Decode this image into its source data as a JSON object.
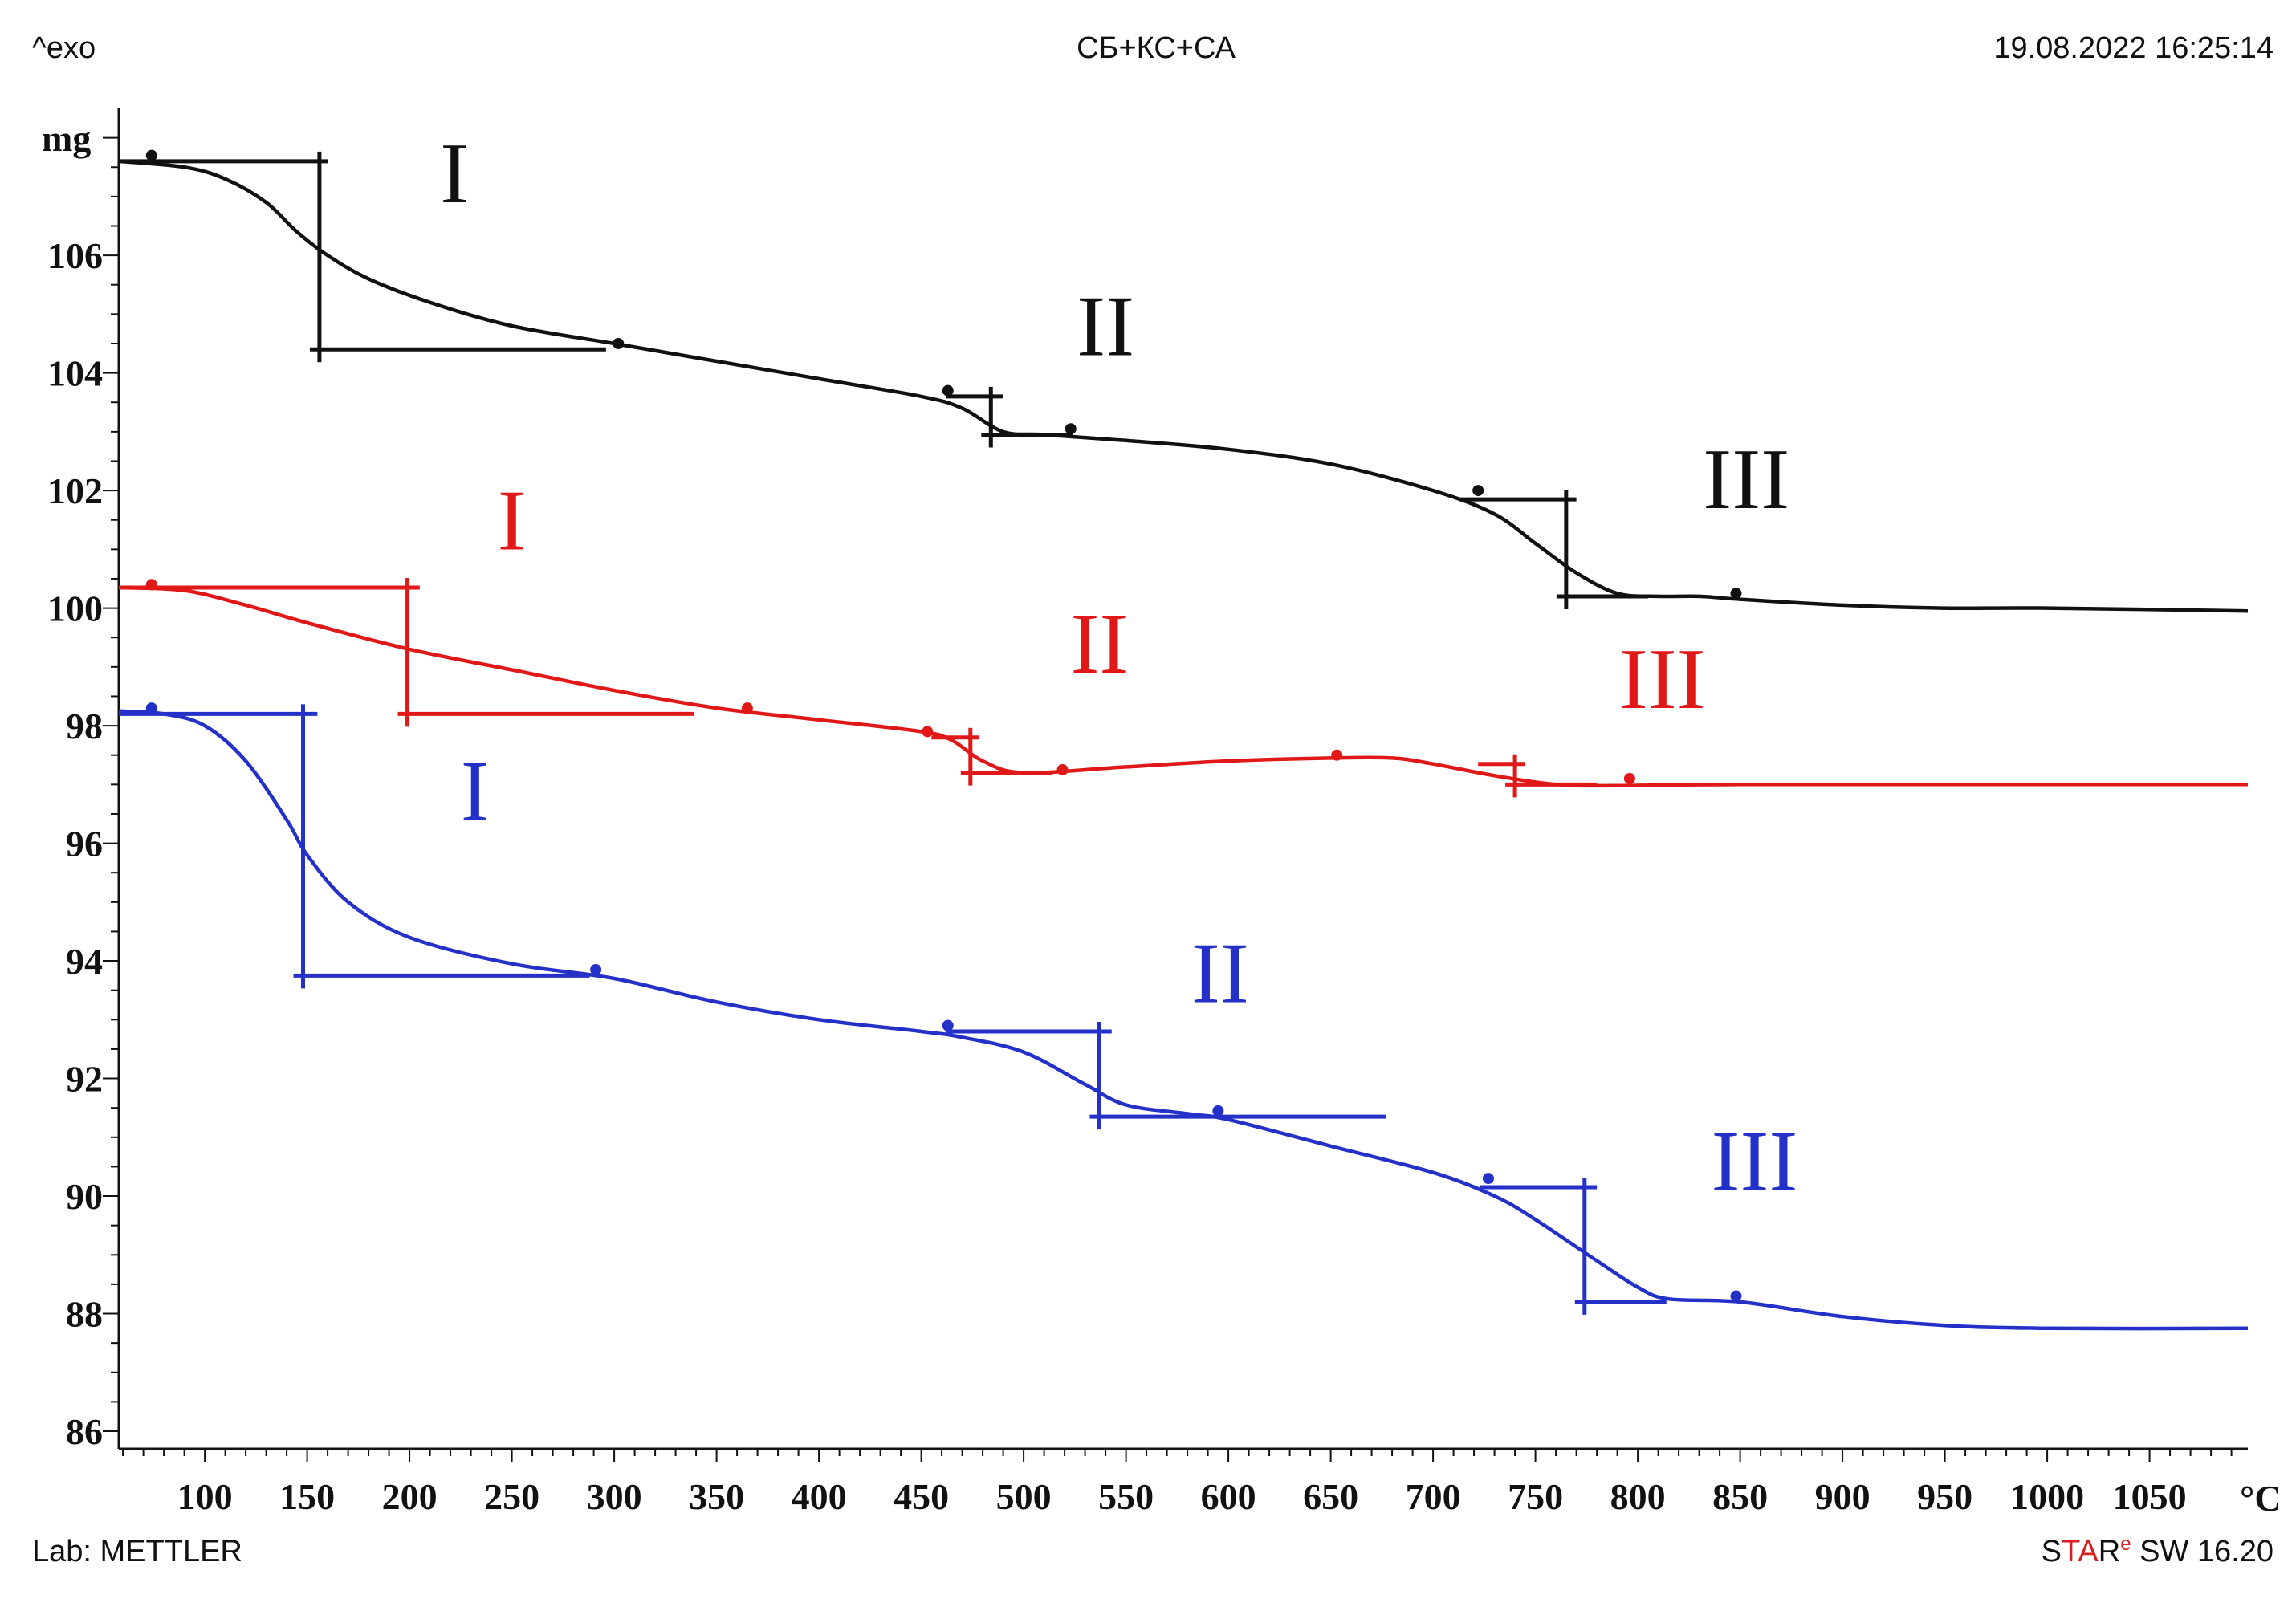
{
  "header": {
    "left": "^exo",
    "center": "СБ+КС+СА",
    "right": "19.08.2022 16:25:14"
  },
  "footer": {
    "lab": "Lab: METTLER",
    "brand_s": "S",
    "brand_ta": "TA",
    "brand_r": "R",
    "brand_e": "e",
    "brand_rest": " SW 16.20"
  },
  "chart_data": {
    "type": "line",
    "title": "СБ+КС+СА",
    "ylabel": "mg",
    "xlabel": "°C",
    "xlim": [
      58,
      1098
    ],
    "ylim": [
      85.7,
      108.5
    ],
    "x_ticks": [
      100,
      150,
      200,
      250,
      300,
      350,
      400,
      450,
      500,
      550,
      600,
      650,
      700,
      750,
      800,
      850,
      900,
      950,
      1000,
      1050
    ],
    "y_ticks": [
      86,
      88,
      90,
      92,
      94,
      96,
      98,
      100,
      102,
      104,
      106
    ],
    "y_top_label": "mg",
    "x_unit_label": "°C",
    "grid": false,
    "series": [
      {
        "name": "black",
        "color": "#111111",
        "x": [
          58,
          90,
          110,
          130,
          145,
          160,
          180,
          210,
          250,
          300,
          350,
          400,
          450,
          470,
          490,
          510,
          550,
          600,
          650,
          700,
          730,
          750,
          770,
          790,
          810,
          830,
          850,
          900,
          950,
          1000,
          1098
        ],
        "y": [
          107.6,
          107.5,
          107.3,
          106.9,
          106.4,
          106.0,
          105.6,
          105.2,
          104.8,
          104.5,
          104.2,
          103.9,
          103.6,
          103.4,
          103.0,
          102.95,
          102.85,
          102.7,
          102.45,
          102.0,
          101.6,
          101.1,
          100.6,
          100.25,
          100.2,
          100.2,
          100.15,
          100.05,
          100.0,
          100.0,
          99.95
        ]
      },
      {
        "name": "red",
        "color": "#e01818",
        "x": [
          58,
          90,
          120,
          150,
          200,
          250,
          300,
          350,
          400,
          450,
          465,
          480,
          500,
          550,
          600,
          650,
          680,
          700,
          730,
          760,
          790,
          850,
          1098
        ],
        "y": [
          100.35,
          100.3,
          100.05,
          99.75,
          99.3,
          98.95,
          98.6,
          98.3,
          98.1,
          97.9,
          97.75,
          97.4,
          97.2,
          97.3,
          97.4,
          97.45,
          97.45,
          97.35,
          97.15,
          97.0,
          96.98,
          97.0,
          97.0
        ]
      },
      {
        "name": "blue",
        "color": "#2431c8",
        "x": [
          58,
          80,
          100,
          120,
          140,
          150,
          170,
          200,
          250,
          300,
          350,
          400,
          450,
          470,
          500,
          530,
          550,
          580,
          600,
          650,
          700,
          730,
          750,
          780,
          800,
          815,
          850,
          900,
          950,
          1000,
          1098
        ],
        "y": [
          98.25,
          98.2,
          98.0,
          97.4,
          96.4,
          95.8,
          95.0,
          94.4,
          93.95,
          93.7,
          93.3,
          93.0,
          92.8,
          92.7,
          92.45,
          91.9,
          91.55,
          91.4,
          91.3,
          90.85,
          90.4,
          90.0,
          89.6,
          88.9,
          88.45,
          88.25,
          88.2,
          87.95,
          87.8,
          87.75,
          87.75
        ]
      }
    ],
    "step_markers": [
      {
        "series": "black",
        "label": "I",
        "x_left": 58,
        "x_right": 160,
        "x_step": 156,
        "y_top": 107.6,
        "y_bottom": 104.4,
        "label_x": 222,
        "label_y": 106.9
      },
      {
        "series": "black",
        "label": "II",
        "x_left": 462,
        "x_right": 490,
        "x_step": 484,
        "y_top": 103.6,
        "y_bottom": 102.95,
        "label_x": 540,
        "label_y": 104.3
      },
      {
        "series": "black",
        "label": "III",
        "x_left": 713,
        "x_right": 770,
        "x_step": 765,
        "y_top": 101.85,
        "y_bottom": 100.2,
        "label_x": 853,
        "label_y": 101.7
      },
      {
        "series": "red",
        "label": "I",
        "x_left": 58,
        "x_right": 205,
        "x_step": 199,
        "y_top": 100.35,
        "y_bottom": 98.2,
        "label_x": 250,
        "label_y": 101.0
      },
      {
        "series": "red",
        "label": "II",
        "x_left": 455,
        "x_right": 478,
        "x_step": 474,
        "y_top": 97.8,
        "y_bottom": 97.2,
        "label_x": 537,
        "label_y": 98.9
      },
      {
        "series": "red",
        "label": "III",
        "x_left": 722,
        "x_right": 745,
        "x_step": 740,
        "y_top": 97.35,
        "y_bottom": 97.0,
        "label_x": 812,
        "label_y": 98.3
      },
      {
        "series": "blue",
        "label": "I",
        "x_left": 58,
        "x_right": 155,
        "x_step": 148,
        "y_top": 98.2,
        "y_bottom": 93.75,
        "label_x": 232,
        "label_y": 96.4
      },
      {
        "series": "blue",
        "label": "II",
        "x_left": 462,
        "x_right": 543,
        "x_step": 537,
        "y_top": 92.8,
        "y_bottom": 91.35,
        "label_x": 596,
        "label_y": 93.3
      },
      {
        "series": "blue",
        "label": "III",
        "x_left": 723,
        "x_right": 780,
        "x_step": 774,
        "y_top": 90.15,
        "y_bottom": 88.2,
        "label_x": 857,
        "label_y": 90.1
      }
    ],
    "evaluation_points": [
      {
        "series": "black",
        "x": [
          74,
          302,
          463,
          523,
          722,
          848
        ],
        "y": [
          107.7,
          104.5,
          103.7,
          103.05,
          102.0,
          100.25
        ]
      },
      {
        "series": "red",
        "x": [
          74,
          365,
          453,
          519,
          653,
          796
        ],
        "y": [
          100.4,
          98.3,
          97.9,
          97.25,
          97.5,
          97.1
        ]
      },
      {
        "series": "blue",
        "x": [
          74,
          291,
          463,
          595,
          727,
          848
        ],
        "y": [
          98.3,
          93.85,
          92.9,
          91.45,
          90.3,
          88.3
        ]
      }
    ]
  }
}
